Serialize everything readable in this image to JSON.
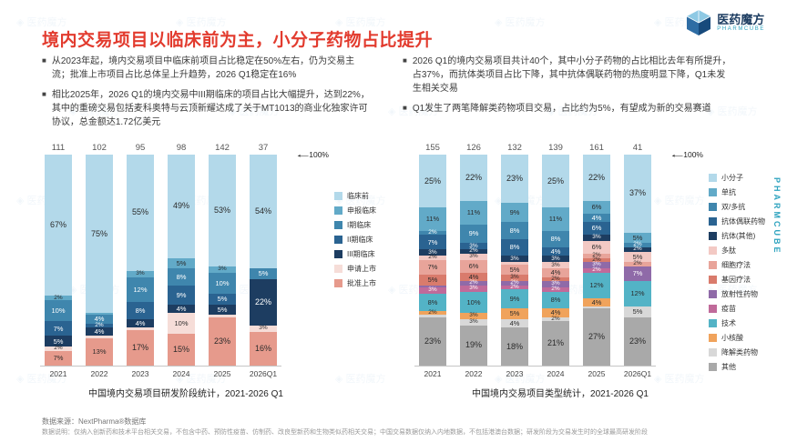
{
  "slide": {
    "title": "境内交易项目以临床前为主，小分子药物占比提升",
    "brand": {
      "name": "医药魔方",
      "subtitle": "PHARMCUBE",
      "vertical": "PHARMCUBE",
      "watermark": "医药魔方"
    },
    "bullets_left": [
      "从2023年起，境内交易项目中临床前项目占比稳定在50%左右，仍为交易主流；批准上市项目占比总体呈上升趋势，2026 Q1稳定在16%",
      "相比2025年，2026 Q1的境内交易中III期临床的项目占比大幅提升，达到22%，其中的重磅交易包括麦科奥特与云顶新耀达成了关于MT1013的商业化独家许可协议，总金额达1.72亿美元"
    ],
    "bullets_right": [
      "2026 Q1的境内交易项目共计40个，其中小分子药物的占比相比去年有所提升，占37%，而抗体类项目占比下降，其中抗体偶联药物的热度明显下降，Q1未发生相关交易",
      "Q1发生了两笔降解类药物项目交易，占比约为5%，有望成为新的交易赛道"
    ],
    "footnote_source": "数据来源：NextPharma®数据库",
    "footnote_note": "数据说明：仅纳入创新药和技术平台相关交易，不包含中药、预防性疫苗、仿制药、改良型新药和生物类似药相关交易；中国交易数据仅纳入内地数据，不包括港澳台数据；研发阶段为交易发生时的全球最高研发阶段"
  },
  "chart_data": [
    {
      "type": "bar",
      "stacked": true,
      "unit": "percent",
      "title": "中国境内交易项目研发阶段统计，2021-2026 Q1",
      "categories": [
        "2021",
        "2022",
        "2023",
        "2024",
        "2025",
        "2026Q1"
      ],
      "totals": [
        111,
        102,
        95,
        98,
        142,
        37
      ],
      "ylim": [
        0,
        100
      ],
      "annotation": "100%",
      "legend_position": "right",
      "series": [
        {
          "name": "临床前",
          "color": "#b3d9ea",
          "values": [
            67,
            75,
            55,
            49,
            53,
            54
          ]
        },
        {
          "name": "申报临床",
          "color": "#62aac8",
          "values": [
            2,
            1,
            3,
            5,
            3,
            0
          ]
        },
        {
          "name": "I期临床",
          "color": "#3f86ad",
          "values": [
            10,
            4,
            12,
            8,
            10,
            5
          ]
        },
        {
          "name": "II期临床",
          "color": "#2a6391",
          "values": [
            7,
            2,
            8,
            9,
            5,
            0
          ]
        },
        {
          "name": "III期临床",
          "color": "#1d3d61",
          "values": [
            5,
            4,
            4,
            4,
            5,
            22
          ]
        },
        {
          "name": "申请上市",
          "color": "#f6ddd8",
          "values": [
            2,
            1,
            1,
            10,
            1,
            3
          ]
        },
        {
          "name": "批准上市",
          "color": "#e69a8c",
          "values": [
            7,
            13,
            17,
            15,
            23,
            16
          ]
        }
      ]
    },
    {
      "type": "bar",
      "stacked": true,
      "unit": "percent",
      "title": "中国境内交易项目类型统计，2021-2026 Q1",
      "categories": [
        "2021",
        "2022",
        "2023",
        "2024",
        "2025",
        "2026Q1"
      ],
      "totals": [
        155,
        126,
        132,
        139,
        161,
        41
      ],
      "ylim": [
        0,
        100
      ],
      "annotation": "100%",
      "legend_position": "right",
      "series": [
        {
          "name": "小分子",
          "color": "#b3d9ea",
          "values": [
            25,
            22,
            23,
            25,
            22,
            37
          ]
        },
        {
          "name": "单抗",
          "color": "#62aac8",
          "values": [
            11,
            11,
            9,
            11,
            6,
            5
          ]
        },
        {
          "name": "双/多抗",
          "color": "#3f86ad",
          "values": [
            2,
            9,
            8,
            8,
            4,
            2
          ]
        },
        {
          "name": "抗体偶联药物",
          "color": "#2a6391",
          "values": [
            7,
            3,
            8,
            4,
            6,
            0
          ]
        },
        {
          "name": "抗体(其他)",
          "color": "#1d3d61",
          "values": [
            3,
            2,
            3,
            3,
            3,
            2
          ]
        },
        {
          "name": "多肽",
          "color": "#f3c9c4",
          "values": [
            2,
            3,
            1,
            3,
            6,
            5
          ]
        },
        {
          "name": "细胞疗法",
          "color": "#e8a49a",
          "values": [
            7,
            6,
            5,
            4,
            2,
            2
          ]
        },
        {
          "name": "基因疗法",
          "color": "#d97b6c",
          "values": [
            5,
            4,
            3,
            2,
            2,
            0
          ]
        },
        {
          "name": "放射性药物",
          "color": "#8f6aa8",
          "values": [
            1,
            2,
            2,
            3,
            3,
            7
          ]
        },
        {
          "name": "疫苗",
          "color": "#c06a9a",
          "values": [
            3,
            3,
            2,
            2,
            2,
            0
          ]
        },
        {
          "name": "技术",
          "color": "#53b3c6",
          "values": [
            8,
            10,
            9,
            8,
            12,
            12
          ]
        },
        {
          "name": "小核酸",
          "color": "#f0a35c",
          "values": [
            2,
            3,
            5,
            4,
            4,
            0
          ]
        },
        {
          "name": "降解类药物",
          "color": "#d8d8d8",
          "values": [
            1,
            3,
            4,
            2,
            1,
            5
          ]
        },
        {
          "name": "其他",
          "color": "#a9a9a9",
          "values": [
            23,
            19,
            18,
            21,
            27,
            23
          ]
        }
      ]
    }
  ]
}
